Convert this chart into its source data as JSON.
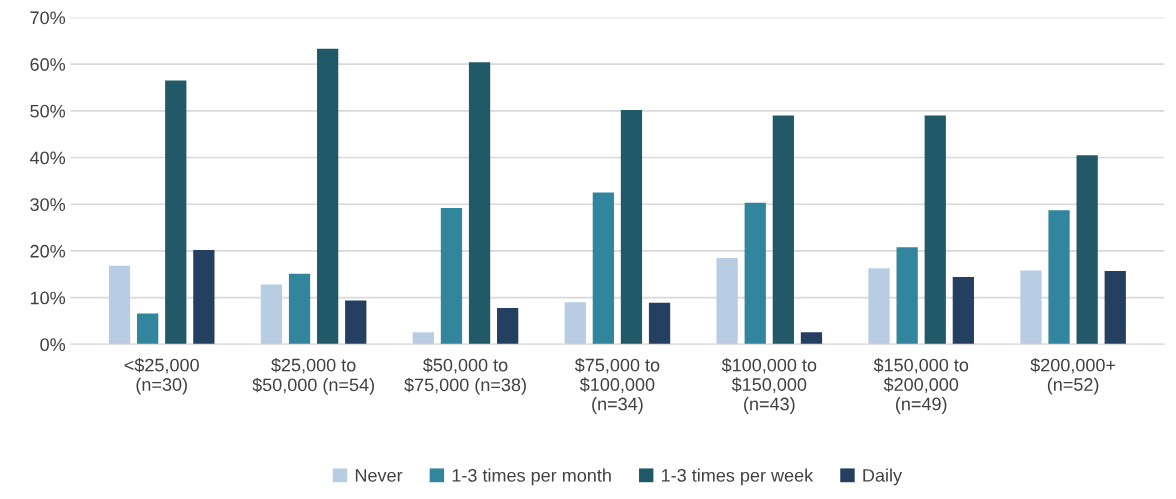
{
  "chart_data": {
    "type": "bar",
    "categories": [
      "<$25,000\n(n=30)",
      "$25,000 to\n$50,000 (n=54)",
      "$50,000 to\n$75,000 (n=38)",
      "$75,000 to\n$100,000\n(n=34)",
      "$100,000 to\n$150,000\n(n=43)",
      "$150,000 to\n$200,000\n(n=49)",
      "$200,000+\n(n=52)"
    ],
    "series": [
      {
        "name": "Never",
        "color": "#b8cce4",
        "values": [
          16.8,
          12.8,
          2.6,
          9.0,
          18.5,
          16.3,
          15.8
        ]
      },
      {
        "name": "1-3 times per month",
        "color": "#31859c",
        "values": [
          6.6,
          15.1,
          29.2,
          32.5,
          30.3,
          20.8,
          28.7
        ]
      },
      {
        "name": "1-3 times per week",
        "color": "#215968",
        "values": [
          56.5,
          63.3,
          60.4,
          50.2,
          49.0,
          49.0,
          40.5
        ]
      },
      {
        "name": "Daily",
        "color": "#243f60",
        "values": [
          20.2,
          9.4,
          7.8,
          8.9,
          2.6,
          14.4,
          15.7
        ]
      }
    ],
    "ylim": [
      0,
      70
    ],
    "yticks": [
      {
        "value": 0,
        "label": "0%"
      },
      {
        "value": 10,
        "label": "10%"
      },
      {
        "value": 20,
        "label": "20%"
      },
      {
        "value": 30,
        "label": "30%"
      },
      {
        "value": 40,
        "label": "40%"
      },
      {
        "value": 50,
        "label": "50%"
      },
      {
        "value": 60,
        "label": "60%"
      },
      {
        "value": 70,
        "label": "70%"
      }
    ],
    "grid": "y",
    "legend": "bottom"
  }
}
